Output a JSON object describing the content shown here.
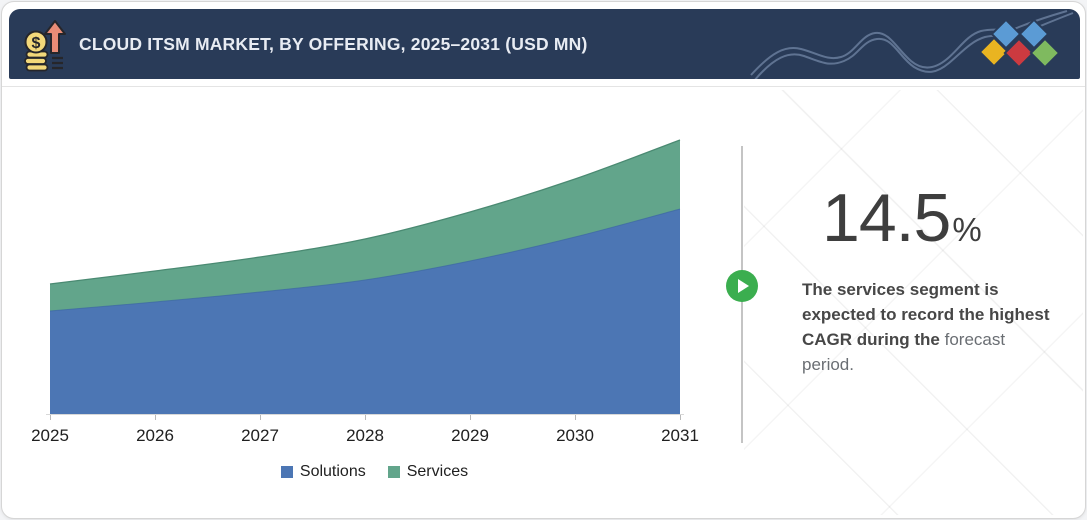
{
  "header": {
    "title": "CLOUD ITSM MARKET, BY OFFERING, 2025–2031 (USD MN)",
    "bg_color": "#293B58",
    "icon": "money-growth-icon",
    "diamond_colors": [
      "#5B9BD5",
      "#5B9BD5",
      "#E9B421",
      "#CC3A40",
      "#7FBA5F"
    ]
  },
  "chart_data": {
    "type": "area",
    "stacked": true,
    "title": "CLOUD ITSM MARKET, BY OFFERING, 2025–2031 (USD MN)",
    "categories": [
      "2025",
      "2026",
      "2027",
      "2028",
      "2029",
      "2030",
      "2031"
    ],
    "series": [
      {
        "name": "Solutions",
        "color": "#4C76B4",
        "edge_color": "#3C66A4",
        "values": [
          103,
          112,
          122,
          134,
          153,
          177,
          205
        ]
      },
      {
        "name": "Services",
        "color": "#62A58B",
        "edge_color": "#4A8A72",
        "values": [
          27,
          31,
          35,
          41,
          49,
          58,
          69
        ]
      }
    ],
    "values_note": "relative units estimated from pixels; y-axis is not labeled in the figure",
    "xlabel": "",
    "ylabel": "",
    "y_axis_visible": false,
    "grid": false,
    "legend_position": "bottom",
    "axis_color": "#d8d8d8",
    "tick_color": "#b9b9b9"
  },
  "callout": {
    "stat_value": "14.5",
    "stat_unit": "%",
    "description_bold": "The services segment is expected to record the highest CAGR during the ",
    "description_regular": "forecast period.",
    "play_color": "#3BAE4F"
  }
}
